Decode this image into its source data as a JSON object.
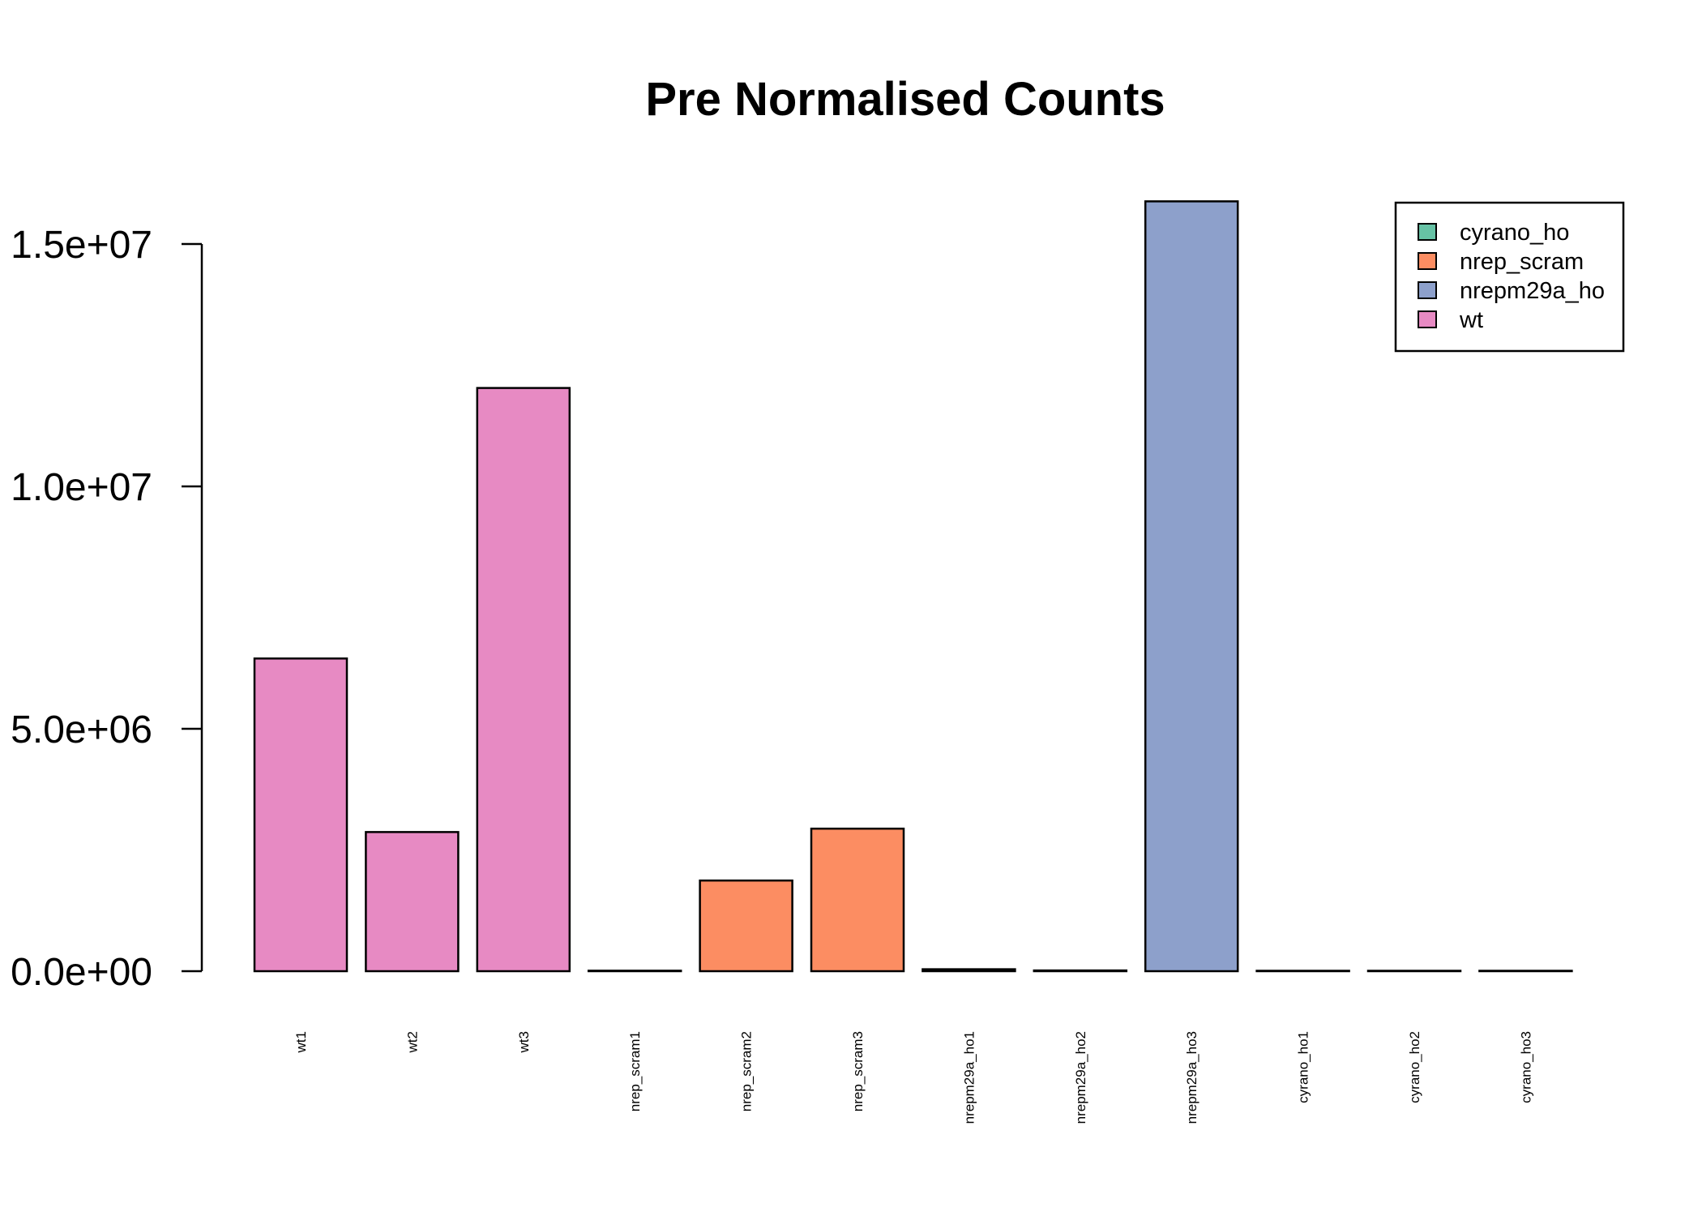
{
  "chart_data": {
    "type": "bar",
    "title": "Pre Normalised Counts",
    "xlabel": "",
    "ylabel": "",
    "ylim": [
      0,
      16000000
    ],
    "yticks": [
      0,
      5000000,
      10000000,
      15000000
    ],
    "ytick_labels": [
      "0.0e+00",
      "5.0e+06",
      "1.0e+07",
      "1.5e+07"
    ],
    "categories": [
      "wt1",
      "wt2",
      "wt3",
      "nrep_scram1",
      "nrep_scram2",
      "nrep_scram3",
      "nrepm29a_ho1",
      "nrepm29a_ho2",
      "nrepm29a_ho3",
      "cyrano_ho1",
      "cyrano_ho2",
      "cyrano_ho3"
    ],
    "values": [
      6450000,
      2870000,
      12030000,
      10000,
      1870000,
      2940000,
      40000,
      15000,
      15880000,
      2000,
      2000,
      2000
    ],
    "groups": [
      "wt",
      "wt",
      "wt",
      "nrep_scram",
      "nrep_scram",
      "nrep_scram",
      "nrepm29a_ho",
      "nrepm29a_ho",
      "nrepm29a_ho",
      "cyrano_ho",
      "cyrano_ho",
      "cyrano_ho"
    ],
    "grid": false,
    "legend_position": "top-right",
    "legend": [
      {
        "label": "cyrano_ho",
        "color": "#66C2A5"
      },
      {
        "label": "nrep_scram",
        "color": "#FC8D62"
      },
      {
        "label": "nrepm29a_ho",
        "color": "#8DA0CB"
      },
      {
        "label": "wt",
        "color": "#E78AC3"
      }
    ]
  }
}
